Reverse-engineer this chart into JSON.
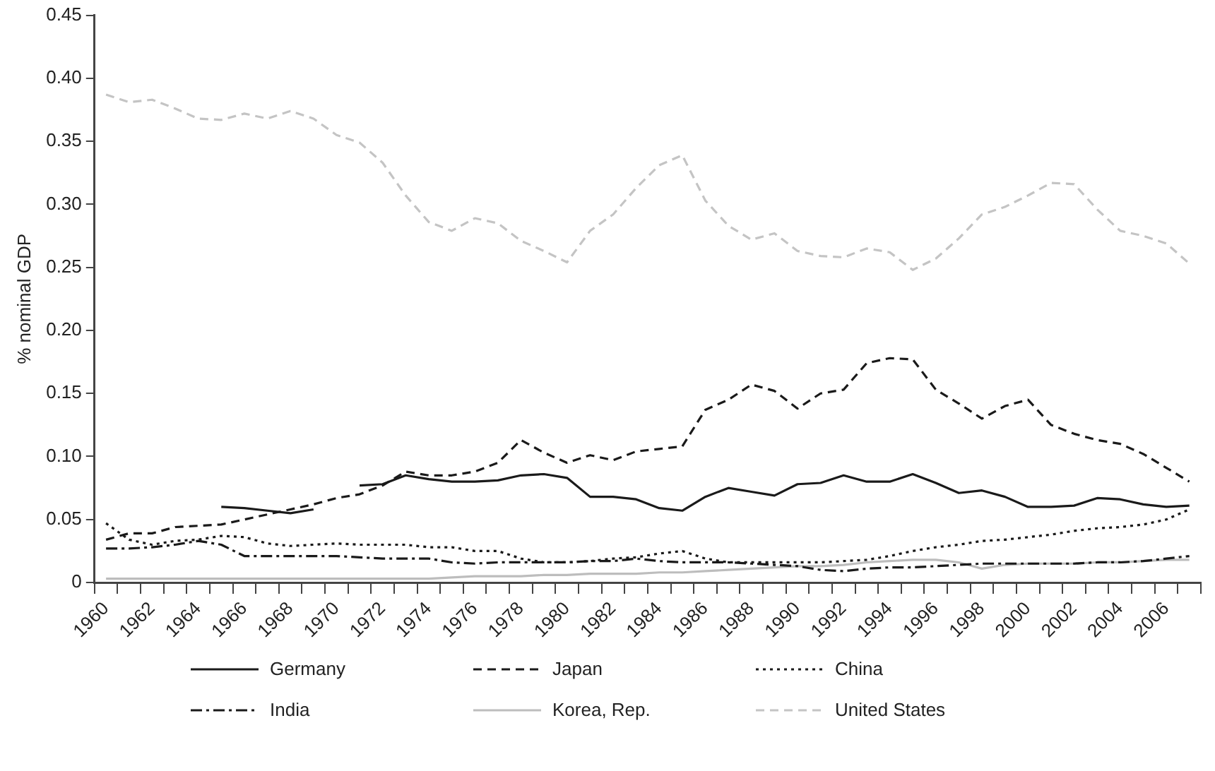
{
  "chart_data": {
    "type": "line",
    "ylabel": "% nominal GDP",
    "categories": [
      "1960",
      null,
      "1962",
      null,
      "1964",
      null,
      "1966",
      null,
      "1968",
      null,
      "1970",
      null,
      "1972",
      null,
      "1974",
      null,
      "1976",
      null,
      "1978",
      null,
      "1980",
      null,
      "1982",
      null,
      "1984",
      null,
      "1986",
      null,
      "1988",
      null,
      "1990",
      null,
      "1992",
      null,
      "1994",
      null,
      "1996",
      null,
      "1998",
      null,
      "2000",
      null,
      "2002",
      null,
      "2004",
      null,
      "2006",
      null
    ],
    "ylim": [
      0,
      0.45
    ],
    "yticks": [
      0,
      {
        "value": 0.05,
        "label": "0.05"
      },
      {
        "value": 0.1,
        "label": "0.10"
      },
      {
        "value": 0.15,
        "label": "0.15"
      },
      {
        "value": 0.2,
        "label": "0.20"
      },
      {
        "value": 0.25,
        "label": "0.25"
      },
      {
        "value": 0.3,
        "label": "0.30"
      },
      {
        "value": 0.35,
        "label": "0.35"
      },
      {
        "value": 0.4,
        "label": "0.40"
      },
      {
        "value": 0.45,
        "label": "0.45"
      }
    ],
    "grid": false,
    "legend": "bottom",
    "marker": "none",
    "series": [
      {
        "name": "Germany",
        "color": "#1a1a1a",
        "line_style": "solid",
        "values": [
          null,
          null,
          null,
          null,
          null,
          0.06,
          0.059,
          0.057,
          0.055,
          0.058,
          null,
          0.077,
          0.078,
          0.085,
          0.082,
          0.08,
          0.08,
          0.081,
          0.085,
          0.086,
          0.083,
          0.068,
          0.068,
          0.066,
          0.059,
          0.057,
          0.068,
          0.075,
          0.072,
          0.069,
          0.078,
          0.079,
          0.085,
          0.08,
          0.08,
          0.086,
          0.079,
          0.071,
          0.073,
          0.068,
          0.06,
          0.06,
          0.061,
          0.067,
          0.066,
          0.062,
          0.06,
          0.061
        ]
      },
      {
        "name": "Japan",
        "color": "#1a1a1a",
        "line_style": "dashed",
        "values": [
          0.034,
          0.039,
          0.039,
          0.044,
          0.045,
          0.046,
          0.05,
          0.054,
          0.058,
          0.062,
          0.067,
          0.07,
          0.077,
          0.088,
          0.085,
          0.085,
          0.088,
          0.095,
          0.113,
          0.103,
          0.095,
          0.101,
          0.097,
          0.104,
          0.106,
          0.108,
          0.137,
          0.145,
          0.157,
          0.152,
          0.138,
          0.15,
          0.153,
          0.174,
          0.178,
          0.177,
          0.153,
          0.142,
          0.13,
          0.14,
          0.145,
          0.125,
          0.118,
          0.113,
          0.11,
          0.102,
          0.091,
          0.08
        ]
      },
      {
        "name": "China",
        "color": "#1a1a1a",
        "line_style": "dotted",
        "values": [
          0.047,
          0.034,
          0.03,
          0.033,
          0.034,
          0.037,
          0.036,
          0.031,
          0.029,
          0.03,
          0.031,
          0.03,
          0.03,
          0.03,
          0.028,
          0.028,
          0.025,
          0.025,
          0.019,
          0.016,
          0.016,
          0.017,
          0.019,
          0.02,
          0.023,
          0.025,
          0.019,
          0.016,
          0.016,
          0.016,
          0.016,
          0.016,
          0.017,
          0.018,
          0.021,
          0.025,
          0.028,
          0.03,
          0.033,
          0.034,
          0.036,
          0.038,
          0.041,
          0.043,
          0.044,
          0.046,
          0.05,
          0.058
        ]
      },
      {
        "name": "India",
        "color": "#1a1a1a",
        "line_style": "dashdot",
        "values": [
          0.027,
          0.027,
          0.028,
          0.03,
          0.033,
          0.03,
          0.021,
          0.021,
          0.021,
          0.021,
          0.021,
          0.02,
          0.019,
          0.019,
          0.019,
          0.016,
          0.015,
          0.016,
          0.016,
          0.016,
          0.016,
          0.017,
          0.017,
          0.019,
          0.017,
          0.016,
          0.016,
          0.016,
          0.015,
          0.014,
          0.013,
          0.01,
          0.009,
          0.011,
          0.012,
          0.012,
          0.013,
          0.014,
          0.015,
          0.015,
          0.015,
          0.015,
          0.015,
          0.016,
          0.016,
          0.017,
          0.019,
          0.021
        ]
      },
      {
        "name": "Korea, Rep.",
        "color": "#bdbdbd",
        "line_style": "solid",
        "values": [
          0.003,
          0.003,
          0.003,
          0.003,
          0.003,
          0.003,
          0.003,
          0.003,
          0.003,
          0.003,
          0.003,
          0.003,
          0.003,
          0.003,
          0.003,
          0.004,
          0.005,
          0.005,
          0.005,
          0.006,
          0.006,
          0.007,
          0.007,
          0.007,
          0.008,
          0.008,
          0.009,
          0.01,
          0.011,
          0.012,
          0.013,
          0.013,
          0.014,
          0.016,
          0.017,
          0.018,
          0.018,
          0.016,
          0.011,
          0.014,
          0.015,
          0.015,
          0.015,
          0.016,
          0.016,
          0.017,
          0.018,
          0.018
        ]
      },
      {
        "name": "United States",
        "color": "#c4c4c4",
        "line_style": "dashed",
        "values": [
          0.387,
          0.381,
          0.383,
          0.376,
          0.368,
          0.367,
          0.372,
          0.368,
          0.374,
          0.368,
          0.355,
          0.349,
          0.333,
          0.307,
          0.286,
          0.279,
          0.289,
          0.285,
          0.271,
          0.263,
          0.254,
          0.279,
          0.292,
          0.313,
          0.331,
          0.339,
          0.303,
          0.283,
          0.272,
          0.277,
          0.263,
          0.259,
          0.258,
          0.265,
          0.262,
          0.248,
          0.257,
          0.273,
          0.292,
          0.298,
          0.307,
          0.317,
          0.316,
          0.296,
          0.279,
          0.275,
          0.269,
          0.253
        ]
      }
    ]
  }
}
